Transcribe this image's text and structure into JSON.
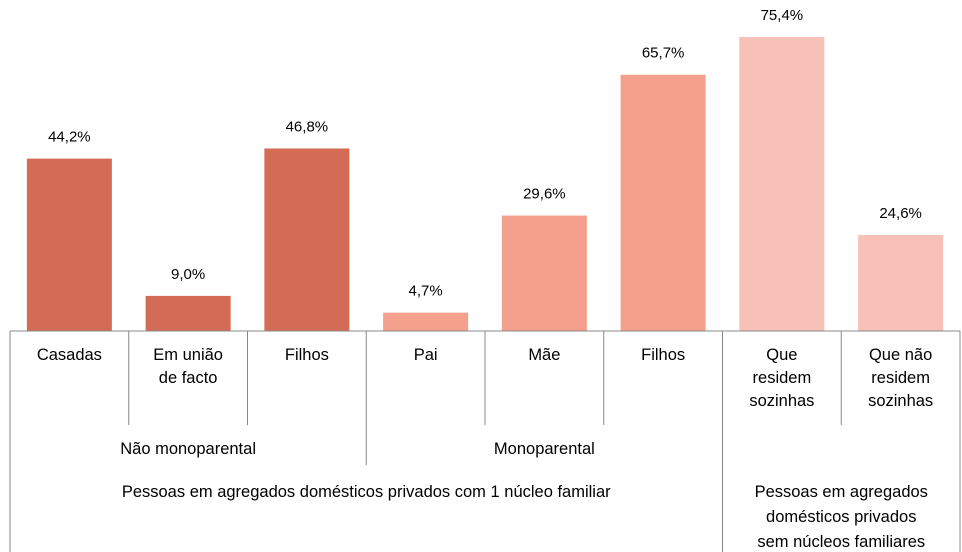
{
  "chart_data": {
    "type": "bar",
    "categories": [
      "Casadas",
      "Em união\nde facto",
      "Filhos",
      "Pai",
      "Mãe",
      "Filhos",
      "Que\nresidem\nsozinhas",
      "Que não\nresidem\nsozinhas"
    ],
    "values": [
      44.2,
      9.0,
      46.8,
      4.7,
      29.6,
      65.7,
      75.4,
      24.6
    ],
    "value_labels": [
      "44,2%",
      "9,0%",
      "46,8%",
      "4,7%",
      "29,6%",
      "65,7%",
      "75,4%",
      "24,6%"
    ],
    "colors": [
      "#d36b55",
      "#d36b55",
      "#d36b55",
      "#f4a08c",
      "#f4a08c",
      "#f4a08c",
      "#f8c1b8",
      "#f8c1b8"
    ],
    "groups": [
      "Não monoparental",
      "Monoparental"
    ],
    "supergroups": [
      "Pessoas em agregados domésticos privados com 1 núcleo familiar",
      "Pessoas em agregados\ndomésticos privados\nsem núcleos familiares"
    ],
    "ylim": [
      0,
      80
    ]
  }
}
